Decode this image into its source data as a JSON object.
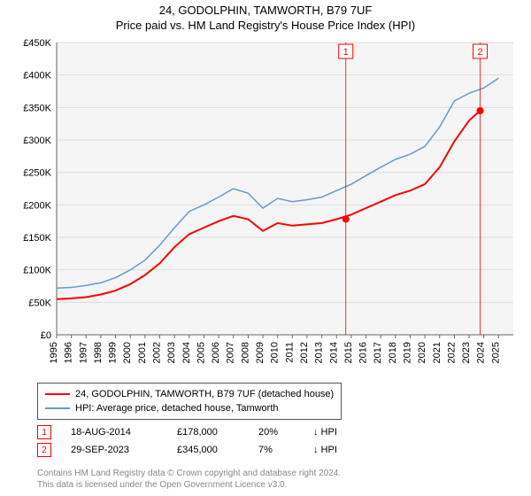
{
  "title_line1": "24, GODOLPHIN, TAMWORTH, B79 7UF",
  "title_line2": "Price paid vs. HM Land Registry's House Price Index (HPI)",
  "chart": {
    "type": "line",
    "plot_bg": "#f5f5f5",
    "grid_color": "#dcdcdc",
    "axis_color": "#666666",
    "y": {
      "min": 0,
      "max": 450000,
      "ticks": [
        0,
        50000,
        100000,
        150000,
        200000,
        250000,
        300000,
        350000,
        400000,
        450000
      ],
      "labels": [
        "£0",
        "£50K",
        "£100K",
        "£150K",
        "£200K",
        "£250K",
        "£300K",
        "£350K",
        "£400K",
        "£450K"
      ],
      "label_fontsize": 11
    },
    "x": {
      "min": 1995,
      "max": 2026,
      "ticks": [
        1995,
        1996,
        1997,
        1998,
        1999,
        2000,
        2001,
        2002,
        2003,
        2004,
        2005,
        2006,
        2007,
        2008,
        2009,
        2010,
        2011,
        2012,
        2013,
        2014,
        2015,
        2016,
        2017,
        2018,
        2019,
        2020,
        2021,
        2022,
        2023,
        2024,
        2025
      ],
      "labels": [
        "1995",
        "1996",
        "1997",
        "1998",
        "1999",
        "2000",
        "2001",
        "2002",
        "2003",
        "2004",
        "2005",
        "2006",
        "2007",
        "2008",
        "2009",
        "2010",
        "2011",
        "2012",
        "2013",
        "2014",
        "2015",
        "2016",
        "2017",
        "2018",
        "2019",
        "2020",
        "2021",
        "2022",
        "2023",
        "2024",
        "2025"
      ],
      "label_fontsize": 11
    },
    "series": [
      {
        "name": "property",
        "label": "24, GODOLPHIN, TAMWORTH, B79 7UF (detached house)",
        "color": "#ff0000",
        "width": 2,
        "points": [
          [
            1995,
            55000
          ],
          [
            1996,
            56000
          ],
          [
            1997,
            58000
          ],
          [
            1998,
            62000
          ],
          [
            1999,
            68000
          ],
          [
            2000,
            78000
          ],
          [
            2001,
            92000
          ],
          [
            2002,
            110000
          ],
          [
            2003,
            135000
          ],
          [
            2004,
            155000
          ],
          [
            2005,
            165000
          ],
          [
            2006,
            175000
          ],
          [
            2007,
            183000
          ],
          [
            2008,
            178000
          ],
          [
            2009,
            160000
          ],
          [
            2010,
            172000
          ],
          [
            2011,
            168000
          ],
          [
            2012,
            170000
          ],
          [
            2013,
            172000
          ],
          [
            2014,
            178000
          ],
          [
            2015,
            185000
          ],
          [
            2016,
            195000
          ],
          [
            2017,
            205000
          ],
          [
            2018,
            215000
          ],
          [
            2019,
            222000
          ],
          [
            2020,
            232000
          ],
          [
            2021,
            258000
          ],
          [
            2022,
            298000
          ],
          [
            2023,
            330000
          ],
          [
            2023.75,
            345000
          ]
        ]
      },
      {
        "name": "hpi",
        "label": "HPI: Average price, detached house, Tamworth",
        "color": "#6699cc",
        "width": 1.5,
        "points": [
          [
            1995,
            72000
          ],
          [
            1996,
            73000
          ],
          [
            1997,
            76000
          ],
          [
            1998,
            80000
          ],
          [
            1999,
            88000
          ],
          [
            2000,
            100000
          ],
          [
            2001,
            115000
          ],
          [
            2002,
            138000
          ],
          [
            2003,
            165000
          ],
          [
            2004,
            190000
          ],
          [
            2005,
            200000
          ],
          [
            2006,
            212000
          ],
          [
            2007,
            225000
          ],
          [
            2008,
            218000
          ],
          [
            2009,
            195000
          ],
          [
            2010,
            210000
          ],
          [
            2011,
            205000
          ],
          [
            2012,
            208000
          ],
          [
            2013,
            212000
          ],
          [
            2014,
            222000
          ],
          [
            2015,
            232000
          ],
          [
            2016,
            245000
          ],
          [
            2017,
            258000
          ],
          [
            2018,
            270000
          ],
          [
            2019,
            278000
          ],
          [
            2020,
            290000
          ],
          [
            2021,
            320000
          ],
          [
            2022,
            360000
          ],
          [
            2023,
            372000
          ],
          [
            2024,
            380000
          ],
          [
            2025,
            395000
          ]
        ]
      }
    ],
    "markers": [
      {
        "n": "1",
        "year": 2014.63,
        "price": 178000,
        "date": "18-AUG-2014",
        "price_label": "£178,000",
        "pct": "20%",
        "rel": "↓ HPI"
      },
      {
        "n": "2",
        "year": 2023.75,
        "price": 345000,
        "date": "29-SEP-2023",
        "price_label": "£345,000",
        "pct": "7%",
        "rel": "↓ HPI"
      }
    ]
  },
  "legend": {
    "rows": [
      {
        "color": "#ff0000",
        "label": "24, GODOLPHIN, TAMWORTH, B79 7UF (detached house)"
      },
      {
        "color": "#6699cc",
        "label": "HPI: Average price, detached house, Tamworth"
      }
    ]
  },
  "footer_line1": "Contains HM Land Registry data © Crown copyright and database right 2024.",
  "footer_line2": "This data is licensed under the Open Government Licence v3.0."
}
